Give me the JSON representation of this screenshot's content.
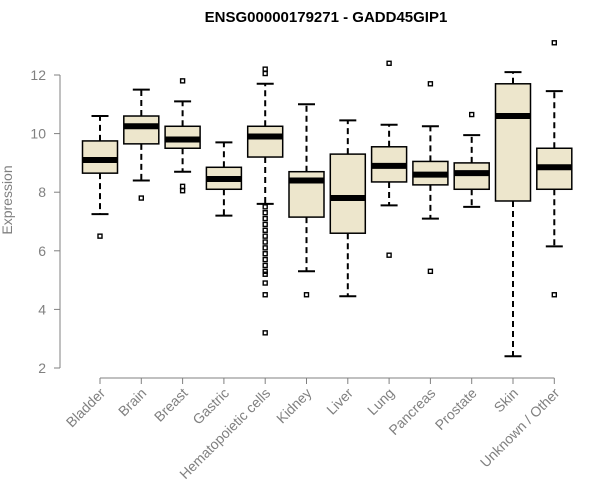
{
  "chart_data": {
    "type": "boxplot",
    "title": "ENSG00000179271 - GADD45GIP1",
    "xlabel": "",
    "ylabel": "Expression",
    "ylim": [
      2,
      13
    ],
    "yticks": [
      2,
      4,
      6,
      8,
      10,
      12
    ],
    "grid": false,
    "box_color": "#ede6cc",
    "categories": [
      "Bladder",
      "Brain",
      "Breast",
      "Gastric",
      "Hematopoietic cells",
      "Kidney",
      "Liver",
      "Lung",
      "Pancreas",
      "Prostate",
      "Skin",
      "Unknown / Other"
    ],
    "boxes": [
      {
        "name": "Bladder",
        "whisker_low": 7.25,
        "q1": 8.65,
        "median": 9.1,
        "q3": 9.75,
        "whisker_high": 10.6,
        "outliers": [
          6.5
        ]
      },
      {
        "name": "Brain",
        "whisker_low": 8.4,
        "q1": 9.65,
        "median": 10.25,
        "q3": 10.6,
        "whisker_high": 11.5,
        "outliers": [
          7.8
        ]
      },
      {
        "name": "Breast",
        "whisker_low": 8.7,
        "q1": 9.5,
        "median": 9.8,
        "q3": 10.25,
        "whisker_high": 11.1,
        "outliers": [
          11.8,
          8.2,
          8.05
        ]
      },
      {
        "name": "Gastric",
        "whisker_low": 7.2,
        "q1": 8.1,
        "median": 8.45,
        "q3": 8.85,
        "whisker_high": 9.7,
        "outliers": []
      },
      {
        "name": "Hematopoietic cells",
        "whisker_low": 7.6,
        "q1": 9.2,
        "median": 9.9,
        "q3": 10.25,
        "whisker_high": 11.7,
        "outliers": [
          12.2,
          12.05,
          7.5,
          7.3,
          7.1,
          6.9,
          6.7,
          6.5,
          6.3,
          6.1,
          5.9,
          5.7,
          5.5,
          5.3,
          5.2,
          4.9,
          4.5,
          3.2
        ]
      },
      {
        "name": "Kidney",
        "whisker_low": 5.3,
        "q1": 7.15,
        "median": 8.4,
        "q3": 8.7,
        "whisker_high": 11.0,
        "outliers": [
          4.5
        ]
      },
      {
        "name": "Liver",
        "whisker_low": 4.45,
        "q1": 6.6,
        "median": 7.8,
        "q3": 9.3,
        "whisker_high": 10.45,
        "outliers": []
      },
      {
        "name": "Lung",
        "whisker_low": 7.55,
        "q1": 8.35,
        "median": 8.9,
        "q3": 9.55,
        "whisker_high": 10.3,
        "outliers": [
          12.4,
          5.85
        ]
      },
      {
        "name": "Pancreas",
        "whisker_low": 7.1,
        "q1": 8.25,
        "median": 8.6,
        "q3": 9.05,
        "whisker_high": 10.25,
        "outliers": [
          11.7,
          5.3
        ]
      },
      {
        "name": "Prostate",
        "whisker_low": 7.5,
        "q1": 8.1,
        "median": 8.65,
        "q3": 9.0,
        "whisker_high": 9.95,
        "outliers": [
          10.65
        ]
      },
      {
        "name": "Skin",
        "whisker_low": 2.4,
        "q1": 7.7,
        "median": 10.6,
        "q3": 11.7,
        "whisker_high": 12.1,
        "outliers": []
      },
      {
        "name": "Unknown / Other",
        "whisker_low": 6.15,
        "q1": 8.1,
        "median": 8.85,
        "q3": 9.5,
        "whisker_high": 11.45,
        "outliers": [
          13.1,
          4.5
        ]
      }
    ]
  }
}
